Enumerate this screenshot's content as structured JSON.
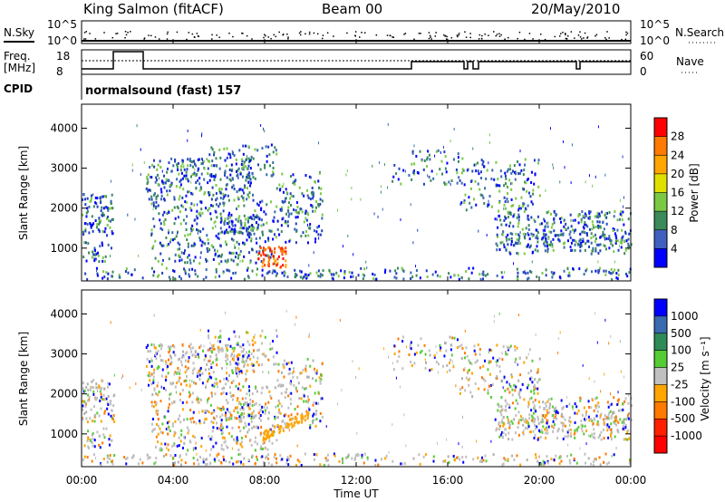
{
  "header": {
    "station": "King Salmon (fitACF)",
    "beam": "Beam 00",
    "date": "20/May/2010"
  },
  "strips": {
    "nsky_label": "N.Sky",
    "nsky_ticks": [
      "10^5",
      "10^0"
    ],
    "nsearch_label": "N.Search",
    "freq_label_1": "Freq.",
    "freq_label_2": "[MHz]",
    "freq_ticks": [
      "18",
      "8"
    ],
    "nave_label": "Nave",
    "nave_ticks": [
      "60",
      "0"
    ],
    "cpid_label": "CPID",
    "cpid_value": "normalsound (fast) 157"
  },
  "chart_data": [
    {
      "type": "heatmap",
      "panel": "power",
      "ylabel": "Slant Range [km]",
      "yticks": [
        "1000",
        "2000",
        "3000",
        "4000"
      ],
      "ylim": [
        180,
        4600
      ],
      "xlim": [
        0,
        24
      ],
      "colorbar_label": "Power [dB]",
      "colorbar_ticks": [
        "28",
        "24",
        "20",
        "16",
        "12",
        "8",
        "4"
      ],
      "colorbar_colors": [
        "#ff0000",
        "#ff7a00",
        "#ffa500",
        "#e0e000",
        "#7ac943",
        "#3a8a5a",
        "#4060c0",
        "#0000ff"
      ]
    },
    {
      "type": "heatmap",
      "panel": "velocity",
      "ylabel": "Slant Range [km]",
      "yticks": [
        "1000",
        "2000",
        "3000",
        "4000"
      ],
      "ylim": [
        180,
        4600
      ],
      "xlim": [
        0,
        24
      ],
      "colorbar_label": "Velocity [m s⁻¹]",
      "colorbar_ticks": [
        "1000",
        "500",
        "100",
        "25",
        "-25",
        "-100",
        "-500",
        "-1000"
      ],
      "colorbar_colors": [
        "#0000ff",
        "#3a6ab0",
        "#2e8b57",
        "#55cc33",
        "#c0c0c0",
        "#ffa500",
        "#ff7a00",
        "#ff2000",
        "#ff0000"
      ]
    }
  ],
  "xaxis": {
    "ticks": [
      "00:00",
      "04:00",
      "08:00",
      "12:00",
      "16:00",
      "20:00",
      "00:00"
    ],
    "label": "Time UT"
  }
}
